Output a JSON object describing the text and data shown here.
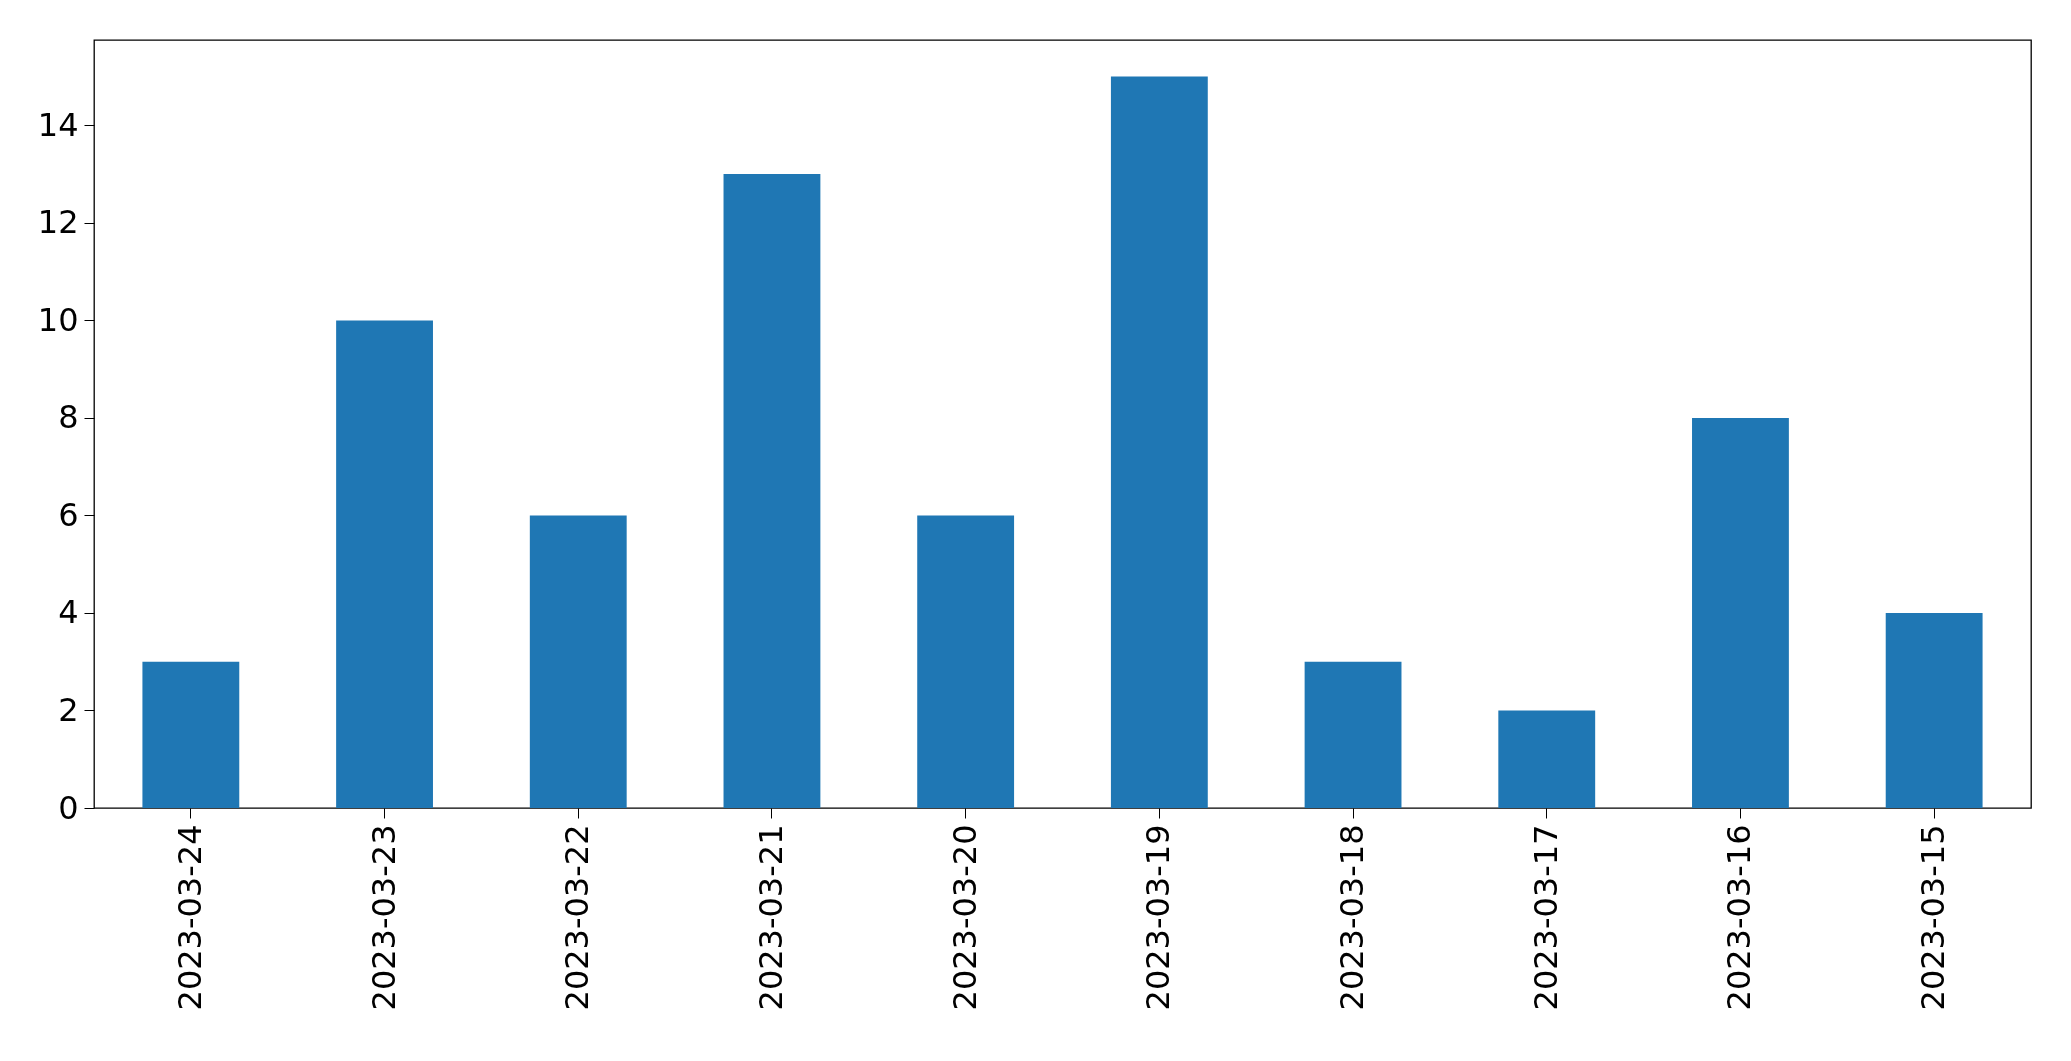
{
  "chart_data": {
    "type": "bar",
    "categories": [
      "2023-03-24",
      "2023-03-23",
      "2023-03-22",
      "2023-03-21",
      "2023-03-20",
      "2023-03-19",
      "2023-03-18",
      "2023-03-17",
      "2023-03-16",
      "2023-03-15"
    ],
    "values": [
      3,
      10,
      6,
      13,
      6,
      15,
      3,
      2,
      8,
      4
    ],
    "color": "#1f77b4",
    "ylim": [
      0,
      15.75
    ],
    "yticks": [
      0,
      2,
      4,
      6,
      8,
      10,
      12,
      14
    ]
  }
}
